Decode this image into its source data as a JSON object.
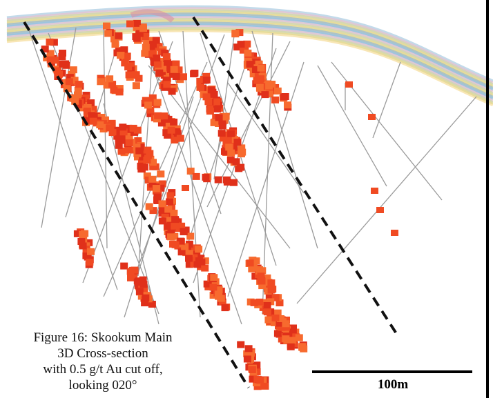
{
  "caption": {
    "lines": [
      "Figure 16: Skookum Main",
      "3D Cross-section",
      "with 0.5 g/t Au cut off,",
      "looking 020°"
    ]
  },
  "scale_bar": {
    "label": "100m"
  },
  "colors": {
    "drill_trace": "#9a9a9a",
    "cutoff_line": "#111111",
    "block_dark": "#e0301a",
    "block_mid": "#f04a22",
    "block_light": "#f76a2e",
    "topo_band": [
      "#8fbcd8",
      "#f4b9c4",
      "#b8d68c",
      "#f3d27a",
      "#6fa6cf"
    ]
  }
}
